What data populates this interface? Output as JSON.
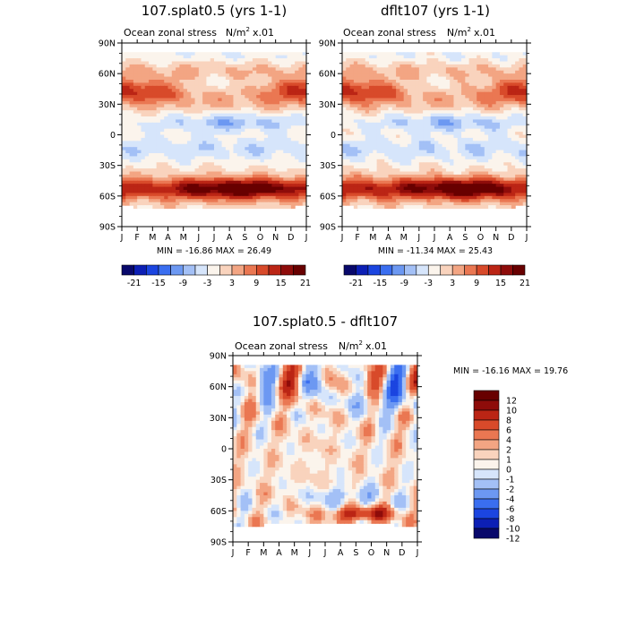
{
  "chart_data": [
    {
      "type": "heatmap",
      "id": "p1",
      "title": "107.splat0.5 (yrs 1-1)",
      "subtitle_left": "Ocean zonal stress",
      "units_main": "N/m",
      "units_sup": "2",
      "units_scale": "x.01",
      "x_ticks": [
        "J",
        "F",
        "M",
        "A",
        "M",
        "J",
        "J",
        "A",
        "S",
        "O",
        "N",
        "D",
        "J"
      ],
      "y_ticks": [
        "90N",
        "60N",
        "30N",
        "0",
        "30S",
        "60S",
        "90S"
      ],
      "y_range": [
        -90,
        90
      ],
      "stats": "MIN = -16.86 MAX =  26.49",
      "colorbar_labels": [
        "-21",
        "-15",
        "-9",
        "-3",
        "3",
        "9",
        "15",
        "21"
      ],
      "contour_levels": [
        -21,
        -18,
        -15,
        -12,
        -9,
        -6,
        -3,
        0,
        3,
        6,
        9,
        12,
        15,
        18,
        21
      ]
    },
    {
      "type": "heatmap",
      "id": "p2",
      "title": "dflt107 (yrs 1-1)",
      "subtitle_left": "Ocean zonal stress",
      "units_main": "N/m",
      "units_sup": "2",
      "units_scale": "x.01",
      "x_ticks": [
        "J",
        "F",
        "M",
        "A",
        "M",
        "J",
        "J",
        "A",
        "S",
        "O",
        "N",
        "D",
        "J"
      ],
      "y_ticks": [
        "90N",
        "60N",
        "30N",
        "0",
        "30S",
        "60S",
        "90S"
      ],
      "y_range": [
        -90,
        90
      ],
      "stats": "MIN = -11.34 MAX =  25.43",
      "colorbar_labels": [
        "-21",
        "-15",
        "-9",
        "-3",
        "3",
        "9",
        "15",
        "21"
      ],
      "contour_levels": [
        -21,
        -18,
        -15,
        -12,
        -9,
        -6,
        -3,
        0,
        3,
        6,
        9,
        12,
        15,
        18,
        21
      ]
    },
    {
      "type": "heatmap",
      "id": "p3",
      "title": "107.splat0.5 - dflt107",
      "subtitle_left": "Ocean zonal stress",
      "units_main": "N/m",
      "units_sup": "2",
      "units_scale": "x.01",
      "x_ticks": [
        "J",
        "F",
        "M",
        "A",
        "M",
        "J",
        "J",
        "A",
        "S",
        "O",
        "N",
        "D",
        "J"
      ],
      "y_ticks": [
        "90N",
        "60N",
        "30N",
        "0",
        "30S",
        "60S",
        "90S"
      ],
      "y_range": [
        -90,
        90
      ],
      "stats": "MIN = -16.16 MAX =  19.76",
      "colorbar_labels": [
        "12",
        "10",
        "8",
        "6",
        "4",
        "2",
        "1",
        "0",
        "-1",
        "-2",
        "-4",
        "-6",
        "-8",
        "-10",
        "-12"
      ],
      "contour_levels": [
        -12,
        -10,
        -8,
        -6,
        -4,
        -2,
        -1,
        0,
        1,
        2,
        4,
        6,
        8,
        10,
        12
      ]
    }
  ],
  "colors": {
    "blue_red": [
      "#08086b",
      "#0c1fb5",
      "#1b45e0",
      "#3a6ef0",
      "#6c98f2",
      "#a3c0f6",
      "#d6e5fb",
      "#fbf4ec",
      "#f9d3bd",
      "#f3a583",
      "#ea7752",
      "#d84a2a",
      "#bb2515",
      "#8e0c0a",
      "#680000"
    ]
  }
}
